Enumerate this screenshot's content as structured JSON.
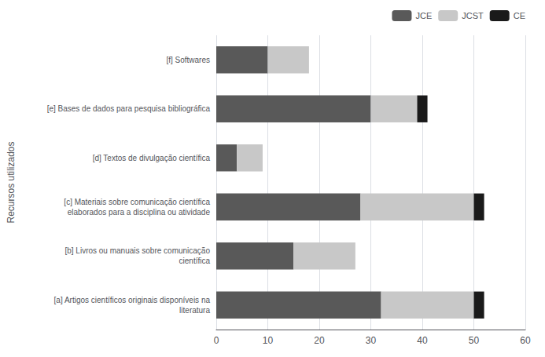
{
  "chart_data": {
    "type": "bar",
    "orientation": "horizontal",
    "stacked": true,
    "ylabel": "Recursos utilizados",
    "categories": [
      "[f] Softwares",
      "[e] Bases de dados para pesquisa bibliográfica",
      "[d] Textos de divulgação científica",
      "[c] Materiais sobre comunicação científica\nelaborados para a disciplina ou atividade",
      "[b] Livros ou manuais sobre comunicação\ncientífica",
      "[a] Artigos científicos originais disponíveis na\nliteratura"
    ],
    "series": [
      {
        "name": "JCE",
        "color": "#595959",
        "values": [
          10,
          30,
          4,
          28,
          15,
          32
        ]
      },
      {
        "name": "JCST",
        "color": "#c8c8c8",
        "values": [
          8,
          9,
          5,
          22,
          12,
          18
        ]
      },
      {
        "name": "CE",
        "color": "#1a1a1a",
        "values": [
          0,
          2,
          0,
          2,
          0,
          2
        ]
      }
    ],
    "xlim": [
      0,
      60
    ],
    "xticks": [
      0,
      10,
      20,
      30,
      40,
      50,
      60
    ],
    "grid": true,
    "legend": "upper right"
  }
}
